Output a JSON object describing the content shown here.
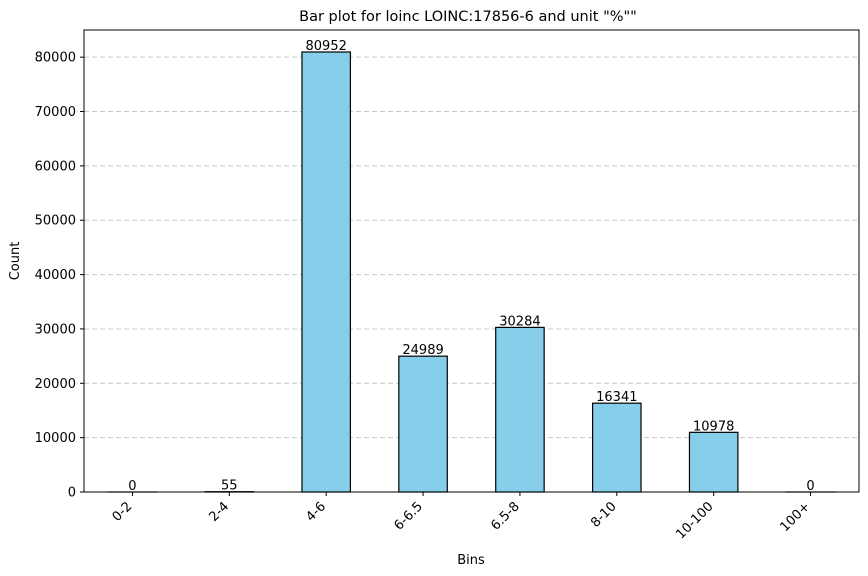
{
  "chart_data": {
    "type": "bar",
    "title": "Bar plot for loinc LOINC:17856-6 and unit \"%\"\"",
    "xlabel": "Bins",
    "ylabel": "Count",
    "categories": [
      "0-2",
      "2-4",
      "4-6",
      "6-6.5",
      "6.5-8",
      "8-10",
      "10-100",
      "100+"
    ],
    "values": [
      0,
      55,
      80952,
      24989,
      30284,
      16341,
      10978,
      0
    ],
    "data_labels": [
      "0",
      "55",
      "80952",
      "24989",
      "30284",
      "16341",
      "10978",
      "0"
    ],
    "ylim": [
      0,
      85000
    ],
    "yticks": [
      0,
      10000,
      20000,
      30000,
      40000,
      50000,
      60000,
      70000,
      80000
    ],
    "ytick_labels": [
      "0",
      "10000",
      "20000",
      "30000",
      "40000",
      "50000",
      "60000",
      "70000",
      "80000"
    ],
    "grid": "y-dashed",
    "bar_color": "#87CEEB",
    "edge_color": "#000000",
    "grid_color": "#c8c8c8"
  }
}
